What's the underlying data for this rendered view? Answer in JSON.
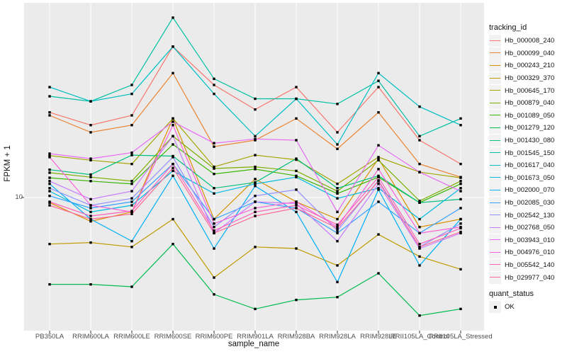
{
  "legend": {
    "tracking_title": "tracking_id",
    "quant_title": "quant_status",
    "quant_items": [
      {
        "label": "OK",
        "marker": "black-square"
      }
    ]
  },
  "axes": {
    "y_tick_labels": [
      {
        "label": "10",
        "value": 10
      }
    ]
  },
  "colors": {
    "panel_background": "#EBEBEB",
    "grid": "#FFFFFF",
    "point": "#000000",
    "tick_mark": "#333333",
    "tick_text": "#4D4D4D",
    "legend_key_bg": "#F2F2F2"
  },
  "chart_data": {
    "type": "line",
    "title": "",
    "xlabel": "sample_name",
    "ylabel": "FPKM + 1",
    "x_type": "categorical",
    "y_scale": "log10",
    "y_ticks_shown": [
      10
    ],
    "ylim": [
      2.1,
      100
    ],
    "grid": "on",
    "legend_position": "right",
    "point_marker": "black-square",
    "categories": [
      "PB350LA",
      "RRIM600LA",
      "RRIM600LE",
      "RRIM600SE",
      "RRIM600PE",
      "RRIM901LA",
      "RRIM928BA",
      "RRIM928LA",
      "RRIM928LE",
      "RRII105LA_Control",
      "RRII105LA_Stressed"
    ],
    "series": [
      {
        "name": "Hb_000008_240",
        "color": "#F8766D",
        "values": [
          28,
          24,
          27,
          62,
          39,
          29,
          38,
          22,
          38,
          20,
          15
        ]
      },
      {
        "name": "Hb_000099_040",
        "color": "#EA8331",
        "values": [
          27,
          22,
          24,
          45,
          18.5,
          20,
          26,
          18,
          28,
          15,
          12.8
        ]
      },
      {
        "name": "Hb_000243_210",
        "color": "#D89000",
        "values": [
          9.4,
          7.5,
          8.4,
          26,
          7.7,
          12.5,
          9.5,
          7.7,
          16,
          7,
          7.7
        ]
      },
      {
        "name": "Hb_000329_370",
        "color": "#C09B00",
        "values": [
          5.7,
          5.8,
          5.5,
          7.7,
          3.8,
          5.5,
          5.4,
          4.4,
          6.4,
          4.9,
          4.2
        ]
      },
      {
        "name": "Hb_000645_170",
        "color": "#A3A500",
        "values": [
          16.6,
          15.7,
          15,
          26,
          14.5,
          16.7,
          15.8,
          11.8,
          16.3,
          13.6,
          12.7
        ]
      },
      {
        "name": "Hb_000879_040",
        "color": "#7CAE00",
        "values": [
          13.5,
          12.8,
          12.2,
          21,
          14.2,
          14.5,
          13.8,
          10.8,
          15.7,
          9.6,
          12.2
        ]
      },
      {
        "name": "Hb_001089_050",
        "color": "#39B600",
        "values": [
          12.7,
          12.2,
          11.8,
          19,
          13.3,
          14.1,
          13,
          10.5,
          12.8,
          9.4,
          11.8
        ]
      },
      {
        "name": "Hb_001279_120",
        "color": "#00BB4E",
        "values": [
          3.5,
          3.5,
          3.4,
          5.7,
          3.1,
          2.6,
          2.9,
          3,
          4,
          2.4,
          2.6
        ]
      },
      {
        "name": "Hb_001430_080",
        "color": "#00BF7D",
        "values": [
          14,
          13.2,
          16.7,
          16.5,
          11.2,
          12,
          16,
          11.2,
          13,
          9.4,
          9.8
        ]
      },
      {
        "name": "Hb_001545_150",
        "color": "#00C1A3",
        "values": [
          34,
          32,
          39,
          88,
          42,
          33,
          33,
          31,
          41,
          21,
          26
        ]
      },
      {
        "name": "Hb_001617_040",
        "color": "#00BFC4",
        "values": [
          38,
          32,
          35,
          62,
          35,
          21,
          33,
          19,
          45,
          30,
          24
        ]
      },
      {
        "name": "Hb_001673_050",
        "color": "#00BAE0",
        "values": [
          10.8,
          8.4,
          9.1,
          13.8,
          10.5,
          11.8,
          12.8,
          9.9,
          11.2,
          7.7,
          11.2
        ]
      },
      {
        "name": "Hb_002000_070",
        "color": "#00B0F6",
        "values": [
          11.8,
          7.7,
          5.9,
          13,
          5.4,
          11.5,
          8.4,
          3.6,
          11,
          4.4,
          7.7
        ]
      },
      {
        "name": "Hb_002085_030",
        "color": "#35A2FF",
        "values": [
          10.2,
          8.8,
          9.5,
          15,
          7.7,
          9.5,
          8.8,
          6.5,
          9.5,
          6.5,
          8.8
        ]
      },
      {
        "name": "Hb_002542_130",
        "color": "#9590FF",
        "values": [
          11.2,
          9.1,
          9.9,
          16.3,
          7,
          10.2,
          11,
          6.7,
          12.3,
          5.5,
          7.3
        ]
      },
      {
        "name": "Hb_002768_050",
        "color": "#C77CFF",
        "values": [
          12.2,
          9.8,
          10.8,
          21,
          6.5,
          9.5,
          9.3,
          5.9,
          11.8,
          5.4,
          6.5
        ]
      },
      {
        "name": "Hb_003943_010",
        "color": "#E76BF3",
        "values": [
          17,
          16,
          17.2,
          25,
          19.3,
          20.3,
          20,
          8.4,
          18.8,
          13.6,
          10.8
        ]
      },
      {
        "name": "Hb_004976_010",
        "color": "#FA62DB",
        "values": [
          16.3,
          9.1,
          8.4,
          24,
          7.3,
          8.8,
          9.5,
          7,
          14.1,
          6.5,
          7
        ]
      },
      {
        "name": "Hb_005542_140",
        "color": "#FF62BC",
        "values": [
          9.5,
          8,
          8.5,
          15,
          6.7,
          8.4,
          9.1,
          7.2,
          12.8,
          5.7,
          6.9
        ]
      },
      {
        "name": "Hb_029977_040",
        "color": "#FF6A98",
        "values": [
          9.1,
          7.7,
          8.2,
          14.3,
          6.5,
          8,
          8.8,
          6.9,
          12.2,
          5.5,
          6.6
        ]
      }
    ]
  }
}
